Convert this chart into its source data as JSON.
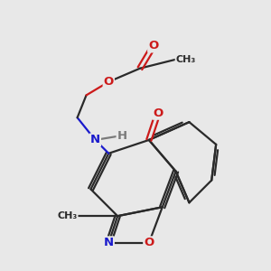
{
  "bg_color": "#e8e8e8",
  "bond_color": "#2a2a2a",
  "bond_width": 1.6,
  "atom_colors": {
    "C": "#2a2a2a",
    "N": "#1a1acc",
    "O": "#cc1a1a",
    "H": "#7a7a7a"
  },
  "font_size": 9.5
}
